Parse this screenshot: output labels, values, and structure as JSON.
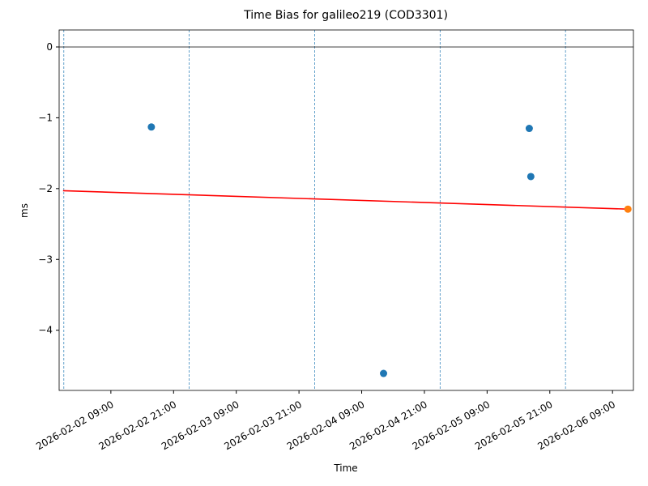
{
  "chart_data": {
    "type": "scatter",
    "title": "Time Bias for galileo219 (COD3301)",
    "x_label": "Time",
    "y_label": "ms",
    "xlim": [
      "2026-02-01 23:06",
      "2026-02-06 13:00"
    ],
    "xticks": [
      "2026-02-02 09:00",
      "2026-02-02 21:00",
      "2026-02-03 09:00",
      "2026-02-03 21:00",
      "2026-02-04 09:00",
      "2026-02-04 21:00",
      "2026-02-05 09:00",
      "2026-02-05 21:00",
      "2026-02-06 09:00"
    ],
    "ylim": [
      -4.85,
      0.24
    ],
    "yticks": [
      0,
      {
        "value": -1,
        "label": "−1"
      },
      {
        "value": -2,
        "label": "−2"
      },
      {
        "value": -3,
        "label": "−3"
      },
      {
        "value": -4,
        "label": "−4"
      }
    ],
    "hlines": [
      0
    ],
    "vlines": [
      "2026-02-02 00:00",
      "2026-02-03 00:00",
      "2026-02-04 00:00",
      "2026-02-05 00:00",
      "2026-02-06 00:00"
    ],
    "series": [
      {
        "type": "scatter",
        "color": "#1f77b4",
        "x": [
          "2026-02-02 16:45",
          "2026-02-04 13:11",
          "2026-02-05 17:04",
          "2026-02-05 17:22"
        ],
        "values": [
          -1.13,
          -4.61,
          -1.15,
          -1.83
        ]
      },
      {
        "type": "line",
        "color": "#ff0000",
        "x": [
          "2026-02-01 23:51",
          "2026-02-06 11:57"
        ],
        "values": [
          -2.03,
          -2.29
        ]
      },
      {
        "type": "scatter",
        "color": "#ff7f0e",
        "x": [
          "2026-02-06 11:57"
        ],
        "values": [
          -2.29
        ]
      }
    ]
  }
}
